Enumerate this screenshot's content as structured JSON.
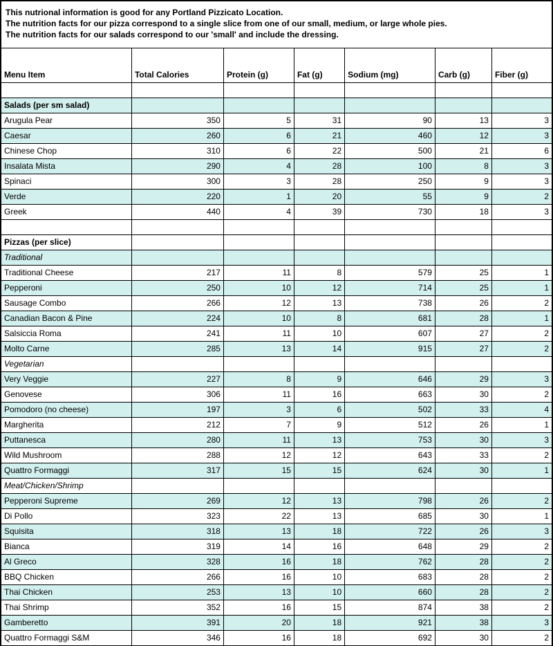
{
  "colors": {
    "shade": "#d2f0ee",
    "border": "#000000",
    "background": "#ffffff",
    "text": "#000000"
  },
  "intro": {
    "line1": "This nutrional information is good for any Portland Pizzicato Location.",
    "line2": "The nutrition facts for our pizza correspond to a single slice from one of our small, medium, or large whole pies.",
    "line3": "The nutrition facts for our salads correspond to our 'small' and include the dressing."
  },
  "columns": [
    "Menu Item",
    "Total Calories",
    "Protein (g)",
    "Fat (g)",
    "Sodium (mg)",
    "Carb (g)",
    "Fiber (g)"
  ],
  "rows": [
    {
      "type": "empty",
      "shade": false
    },
    {
      "type": "section",
      "shade": true,
      "label": "Salads (per sm salad)"
    },
    {
      "type": "data",
      "shade": false,
      "name": "Arugula Pear",
      "vals": [
        350,
        5,
        31,
        90,
        13,
        3
      ]
    },
    {
      "type": "data",
      "shade": true,
      "name": "Caesar",
      "vals": [
        260,
        6,
        21,
        460,
        12,
        3
      ]
    },
    {
      "type": "data",
      "shade": false,
      "name": "Chinese Chop",
      "vals": [
        310,
        6,
        22,
        500,
        21,
        6
      ]
    },
    {
      "type": "data",
      "shade": true,
      "name": "Insalata Mista",
      "vals": [
        290,
        4,
        28,
        100,
        8,
        3
      ]
    },
    {
      "type": "data",
      "shade": false,
      "name": "Spinaci",
      "vals": [
        300,
        3,
        28,
        250,
        9,
        3
      ]
    },
    {
      "type": "data",
      "shade": true,
      "name": "Verde",
      "vals": [
        220,
        1,
        20,
        55,
        9,
        2
      ]
    },
    {
      "type": "data",
      "shade": false,
      "name": "Greek",
      "vals": [
        440,
        4,
        39,
        730,
        18,
        3
      ]
    },
    {
      "type": "empty",
      "shade": false
    },
    {
      "type": "section",
      "shade": false,
      "label": "Pizzas (per slice)"
    },
    {
      "type": "subsection",
      "shade": true,
      "label": "Traditional"
    },
    {
      "type": "data",
      "shade": false,
      "name": "Traditional Cheese",
      "vals": [
        217,
        11,
        8,
        579,
        25,
        1
      ]
    },
    {
      "type": "data",
      "shade": true,
      "name": "Pepperoni",
      "vals": [
        250,
        10,
        12,
        714,
        25,
        1
      ]
    },
    {
      "type": "data",
      "shade": false,
      "name": "Sausage Combo",
      "vals": [
        266,
        12,
        13,
        738,
        26,
        2
      ]
    },
    {
      "type": "data",
      "shade": true,
      "name": "Canadian Bacon & Pine",
      "vals": [
        224,
        10,
        8,
        681,
        28,
        1
      ]
    },
    {
      "type": "data",
      "shade": false,
      "name": "Salsiccia Roma",
      "vals": [
        241,
        11,
        10,
        607,
        27,
        2
      ]
    },
    {
      "type": "data",
      "shade": true,
      "name": "Molto Carne",
      "vals": [
        285,
        13,
        14,
        915,
        27,
        2
      ]
    },
    {
      "type": "subsection",
      "shade": false,
      "label": "Vegetarian"
    },
    {
      "type": "data",
      "shade": true,
      "name": "Very Veggie",
      "vals": [
        227,
        8,
        9,
        646,
        29,
        3
      ]
    },
    {
      "type": "data",
      "shade": false,
      "name": "Genovese",
      "vals": [
        306,
        11,
        16,
        663,
        30,
        2
      ]
    },
    {
      "type": "data",
      "shade": true,
      "name": "Pomodoro (no cheese)",
      "vals": [
        197,
        3,
        6,
        502,
        33,
        4
      ]
    },
    {
      "type": "data",
      "shade": false,
      "name": "Margherita",
      "vals": [
        212,
        7,
        9,
        512,
        26,
        1
      ]
    },
    {
      "type": "data",
      "shade": true,
      "name": "Puttanesca",
      "vals": [
        280,
        11,
        13,
        753,
        30,
        3
      ]
    },
    {
      "type": "data",
      "shade": false,
      "name": "Wild Mushroom",
      "vals": [
        288,
        12,
        12,
        643,
        33,
        2
      ]
    },
    {
      "type": "data",
      "shade": true,
      "name": "Quattro Formaggi",
      "vals": [
        317,
        15,
        15,
        624,
        30,
        1
      ]
    },
    {
      "type": "subsection",
      "shade": false,
      "label": "Meat/Chicken/Shrimp"
    },
    {
      "type": "data",
      "shade": true,
      "name": "Pepperoni Supreme",
      "vals": [
        269,
        12,
        13,
        798,
        26,
        2
      ]
    },
    {
      "type": "data",
      "shade": false,
      "name": "Di Pollo",
      "vals": [
        323,
        22,
        13,
        685,
        30,
        1
      ]
    },
    {
      "type": "data",
      "shade": true,
      "name": "Squisita",
      "vals": [
        318,
        13,
        18,
        722,
        26,
        3
      ]
    },
    {
      "type": "data",
      "shade": false,
      "name": "Bianca",
      "vals": [
        319,
        14,
        16,
        648,
        29,
        2
      ]
    },
    {
      "type": "data",
      "shade": true,
      "name": "Al Greco",
      "vals": [
        328,
        16,
        18,
        762,
        28,
        2
      ]
    },
    {
      "type": "data",
      "shade": false,
      "name": "BBQ Chicken",
      "vals": [
        266,
        16,
        10,
        683,
        28,
        2
      ]
    },
    {
      "type": "data",
      "shade": true,
      "name": "Thai Chicken",
      "vals": [
        253,
        13,
        10,
        660,
        28,
        2
      ]
    },
    {
      "type": "data",
      "shade": false,
      "name": "Thai Shrimp",
      "vals": [
        352,
        16,
        15,
        874,
        38,
        2
      ]
    },
    {
      "type": "data",
      "shade": true,
      "name": "Gamberetto",
      "vals": [
        391,
        20,
        18,
        921,
        38,
        3
      ]
    },
    {
      "type": "data",
      "shade": false,
      "name": "Quattro Formaggi S&M",
      "vals": [
        346,
        16,
        18,
        692,
        30,
        2
      ]
    }
  ]
}
